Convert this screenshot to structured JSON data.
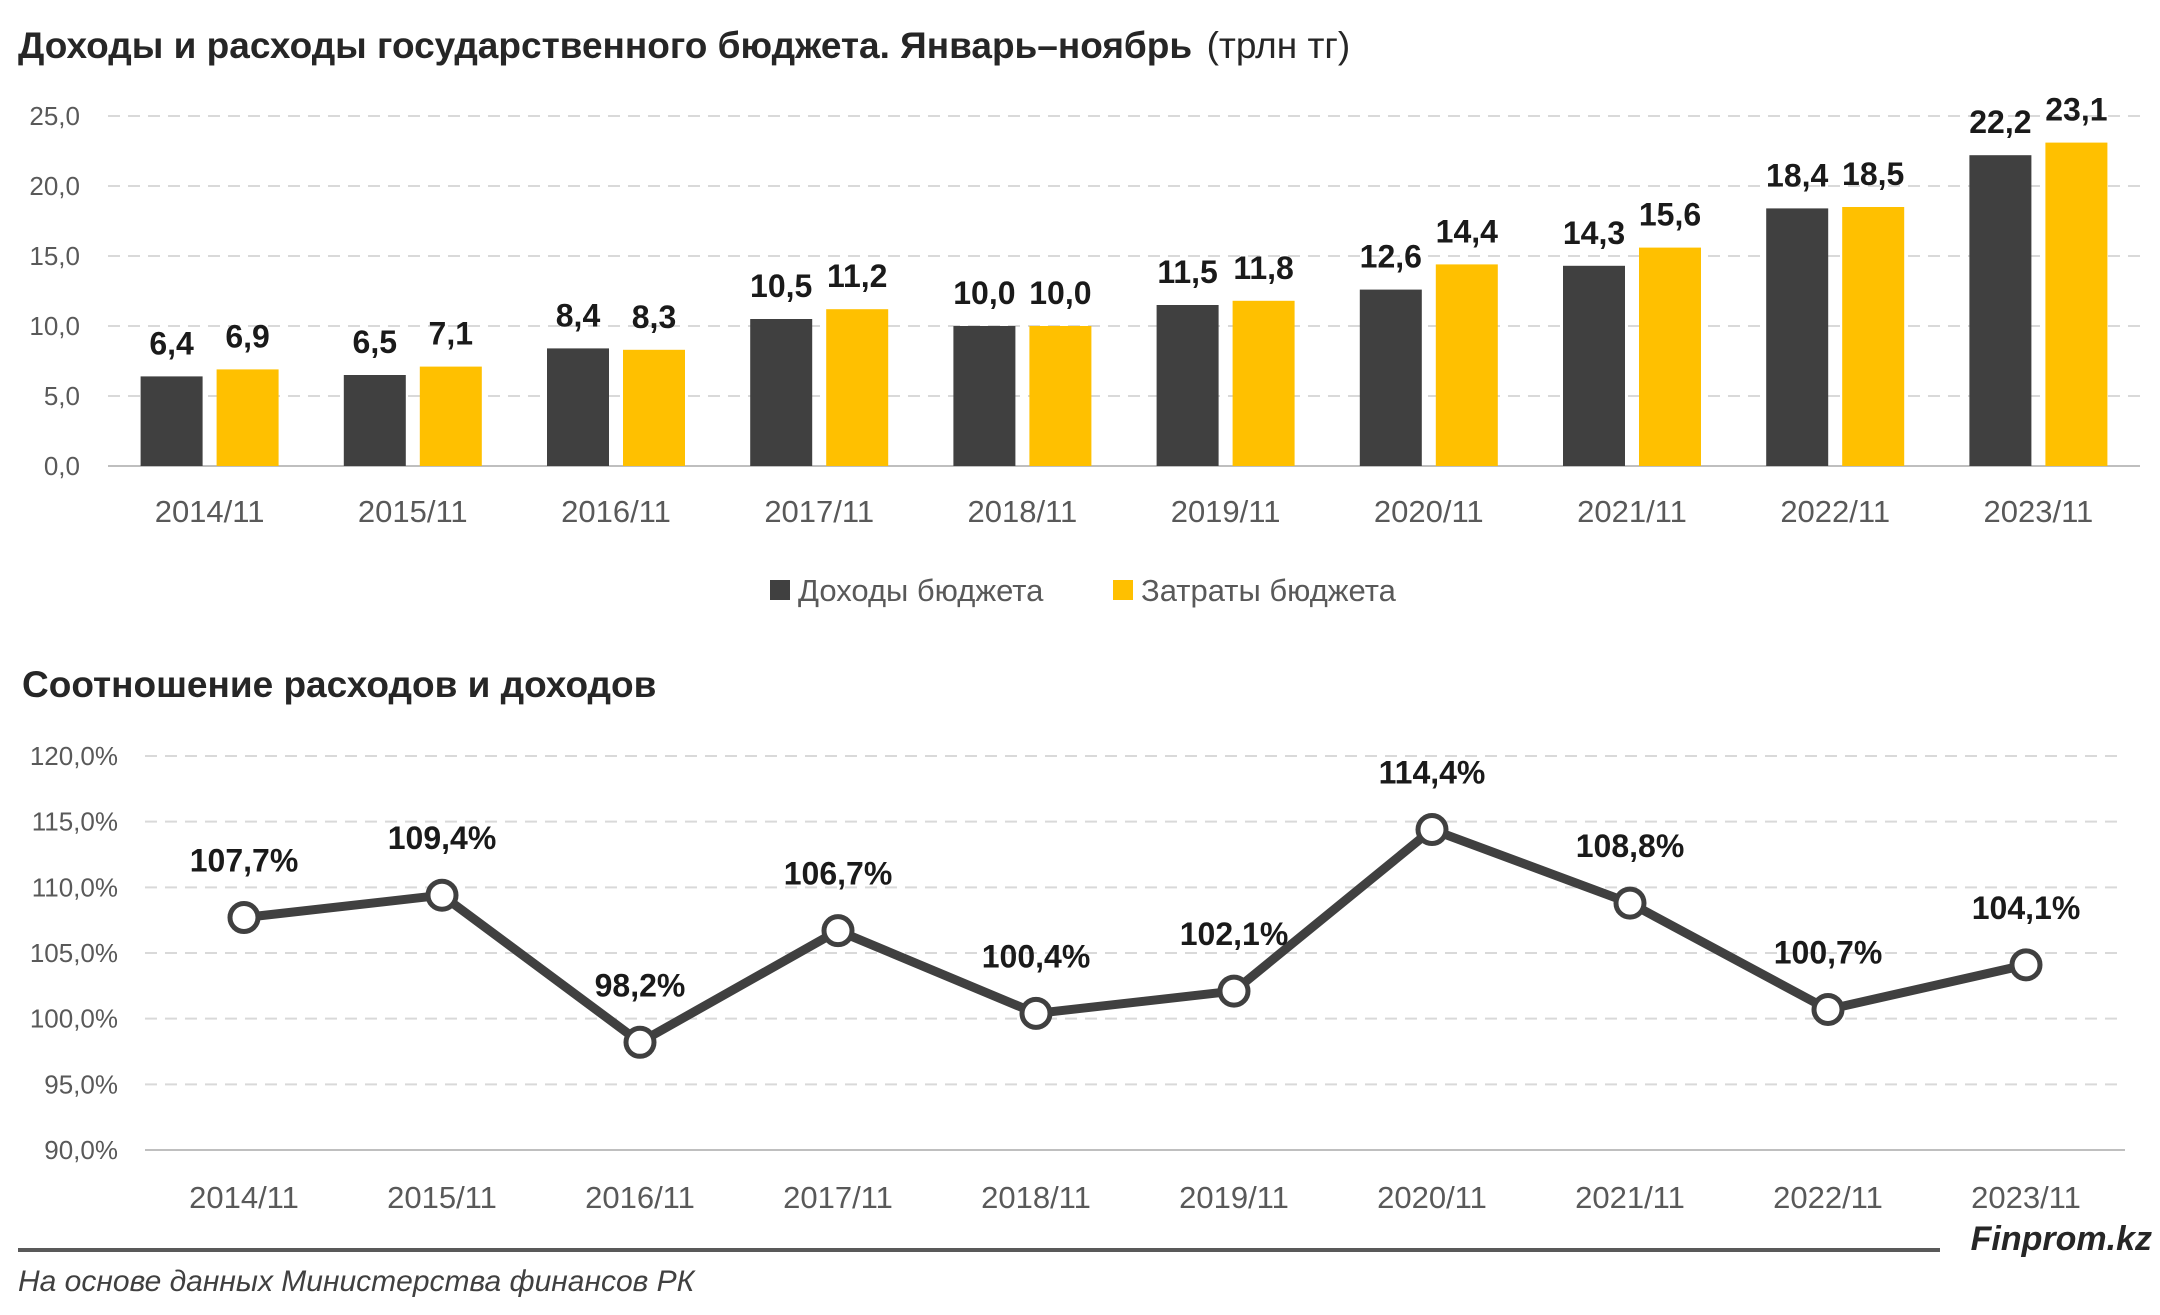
{
  "chart_data": [
    {
      "type": "bar",
      "title": "Доходы и расходы государственного бюджета. Январь–ноябрь",
      "unit": "(трлн тг)",
      "categories": [
        "2014/11",
        "2015/11",
        "2016/11",
        "2017/11",
        "2018/11",
        "2019/11",
        "2020/11",
        "2021/11",
        "2022/11",
        "2023/11"
      ],
      "series": [
        {
          "name": "Доходы бюджета",
          "color": "#404040",
          "values": [
            6.4,
            6.5,
            8.4,
            10.5,
            10.0,
            11.5,
            12.6,
            14.3,
            18.4,
            22.2
          ],
          "labels": [
            "6,4",
            "6,5",
            "8,4",
            "10,5",
            "10,0",
            "11,5",
            "12,6",
            "14,3",
            "18,4",
            "22,2"
          ]
        },
        {
          "name": "Затраты бюджета",
          "color": "#FFC000",
          "values": [
            6.9,
            7.1,
            8.3,
            11.2,
            10.0,
            11.8,
            14.4,
            15.6,
            18.5,
            23.1
          ],
          "labels": [
            "6,9",
            "7,1",
            "8,3",
            "11,2",
            "10,0",
            "11,8",
            "14,4",
            "15,6",
            "18,5",
            "23,1"
          ]
        }
      ],
      "ylim": [
        0,
        25
      ],
      "yticks": [
        0,
        5,
        10,
        15,
        20,
        25
      ],
      "ytick_labels": [
        "0,0",
        "5,0",
        "10,0",
        "15,0",
        "20,0",
        "25,0"
      ],
      "grid": true,
      "legend_position": "bottom"
    },
    {
      "type": "line",
      "title": "Соотношение расходов и доходов",
      "categories": [
        "2014/11",
        "2015/11",
        "2016/11",
        "2017/11",
        "2018/11",
        "2019/11",
        "2020/11",
        "2021/11",
        "2022/11",
        "2023/11"
      ],
      "values": [
        107.7,
        109.4,
        98.2,
        106.7,
        100.4,
        102.1,
        114.4,
        108.8,
        100.7,
        104.1
      ],
      "labels": [
        "107,7%",
        "109,4%",
        "98,2%",
        "106,7%",
        "100,4%",
        "102,1%",
        "114,4%",
        "108,8%",
        "100,7%",
        "104,1%"
      ],
      "color": "#404040",
      "ylim": [
        90,
        120
      ],
      "yticks": [
        90,
        95,
        100,
        105,
        110,
        115,
        120
      ],
      "ytick_labels": [
        "90,0%",
        "95,0%",
        "100,0%",
        "105,0%",
        "110,0%",
        "115,0%",
        "120,0%"
      ],
      "grid": true
    }
  ],
  "footer": {
    "source": "На основе данных Министерства финансов РК",
    "brand": "Finprom.kz"
  }
}
